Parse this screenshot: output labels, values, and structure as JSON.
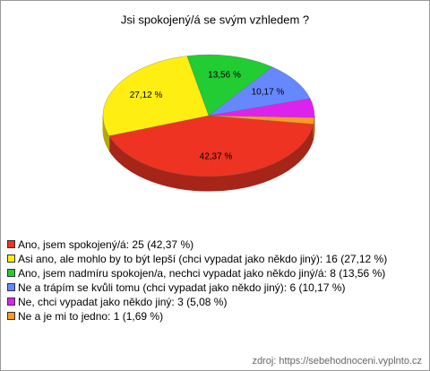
{
  "chart_data": {
    "type": "pie",
    "title": "Jsi spokojený/á se svým vzhledem ?",
    "categories": [
      "Ano, jsem spokojený/á: 25 (42,37 %)",
      "Asi ano, ale mohlo by to být lepší (chci vypadat jako někdo jiný): 16 (27,12 %)",
      "Ano, jsem nadmíru spokojen/a, nechci vypadat jako někdo jiný/á: 8 (13,56 %)",
      "Ne a trápím se kvůli tomu (chci vypadat jako někdo jiný): 6 (10,17 %)",
      "Ne, chci vypadat jako někdo jiný: 3 (5,08 %)",
      "Ne a je mi to jedno: 1 (1,69 %)"
    ],
    "values": [
      42.37,
      27.12,
      13.56,
      10.17,
      5.08,
      1.69
    ],
    "value_labels": [
      "42,37 %",
      "27,12 %",
      "13,56 %",
      "10,17 %",
      null,
      null
    ],
    "colors": [
      "#ee3322",
      "#ffee11",
      "#22cc33",
      "#6688ff",
      "#dd22ee",
      "#ff9922"
    ],
    "source": "zdroj: https://sebehodnoceni.vyplnto.cz"
  }
}
